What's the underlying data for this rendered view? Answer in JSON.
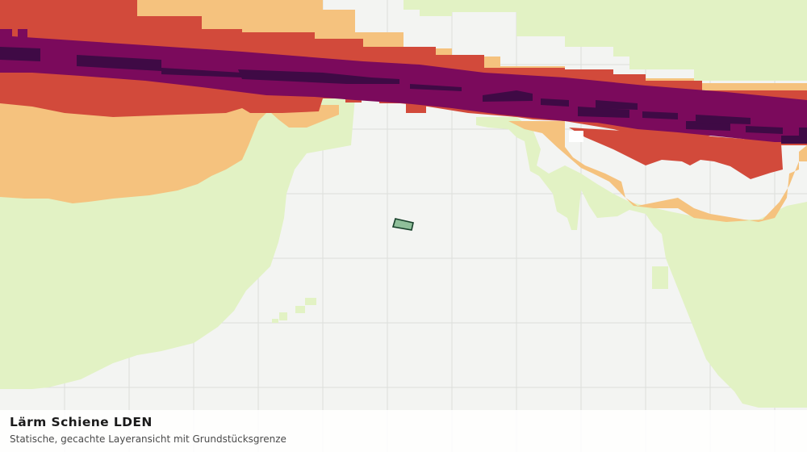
{
  "map": {
    "layer_title": "Lärm Schiene LDEN",
    "layer_subtitle": "Statische, gecachte Layeransicht mit Grundstücksgrenze",
    "colors": {
      "background": "#f3f4f2",
      "grid": "#dcdedb",
      "class_lowest": "#e2f2c4",
      "class_low": "#f5c27e",
      "class_mid": "#d24a3b",
      "class_high": "#7b0a5c",
      "class_highest": "#3f0a45",
      "parcel_fill": "#8fbf9a",
      "parcel_stroke": "#17402a"
    }
  }
}
